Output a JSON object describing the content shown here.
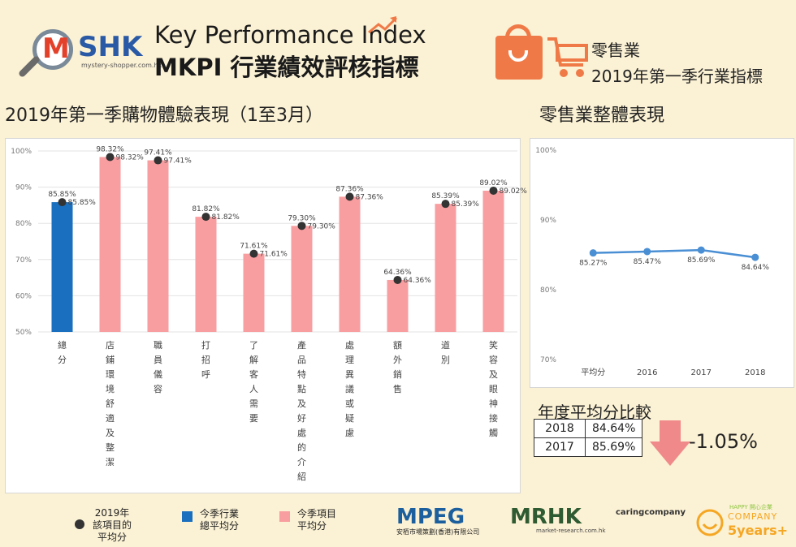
{
  "header": {
    "logo_letter": "M",
    "logo_brand": "SHK",
    "logo_url": "mystery-shopper.com.hk",
    "title_en": "Key Performance Index",
    "title_zh": "MKPI 行業績效評核指標",
    "industry": "零售業",
    "period": "2019年第一季行業指標"
  },
  "sections": {
    "left_title": "2019年第一季購物體驗表現（1至3月）",
    "right_title": "零售業整體表現"
  },
  "colors": {
    "overall": "#1a6fbe",
    "item": "#f99ea0",
    "line": "#4a8fd4",
    "dot": "#333333"
  },
  "chart_data": [
    {
      "type": "bar",
      "categories": [
        "總分",
        "店鋪環境舒適及整潔",
        "職員儀容",
        "打招呼",
        "了解客人需要",
        "產品特點及好處的介紹",
        "處理異議或疑慮",
        "額外銷售",
        "道別",
        "笑容及眼神接觸"
      ],
      "values": [
        85.85,
        98.32,
        97.41,
        81.82,
        71.61,
        79.3,
        87.36,
        64.36,
        85.39,
        89.02
      ],
      "bar_labels": [
        "85.85%",
        "98.32%",
        "97.41%",
        "81.82%",
        "71.61%",
        "79.30%",
        "87.36%",
        "64.36%",
        "85.39%",
        "89.02%"
      ],
      "dot_values": [
        85.85,
        98.32,
        97.41,
        81.82,
        71.61,
        79.3,
        87.36,
        64.36,
        85.39,
        89.02
      ],
      "dot_labels": [
        "85.85%",
        "98.32%",
        "97.41%",
        "81.82%",
        "71.61%",
        "79.30%",
        "87.36%",
        "64.36%",
        "85.39%",
        "89.02%"
      ],
      "yticks": [
        "50%",
        "60%",
        "70%",
        "80%",
        "90%",
        "100%"
      ],
      "ylim": [
        50,
        100
      ],
      "grid": true
    },
    {
      "type": "line",
      "categories": [
        "平均分",
        "2016",
        "2017",
        "2018"
      ],
      "values": [
        85.27,
        85.47,
        85.69,
        84.64
      ],
      "labels": [
        "85.27%",
        "85.47%",
        "85.69%",
        "84.64%"
      ],
      "yticks": [
        "70%",
        "80%",
        "90%",
        "100%"
      ],
      "ylim": [
        70,
        100
      ]
    }
  ],
  "comparison": {
    "title": "年度平均分比較",
    "rows": [
      {
        "year": "2018",
        "value": "84.64%"
      },
      {
        "year": "2017",
        "value": "85.69%"
      }
    ],
    "change": "-1.05%"
  },
  "legend": {
    "dot_label": "2019年\n該項目的\n平均分",
    "overall_label": "今季行業\n總平均分",
    "item_label": "今季項目\n平均分"
  },
  "footer": {
    "mpeg": "MPEG",
    "mpeg_sub": "安栢市場策劃(香港)有限公司",
    "mrhk": "MRHK",
    "mrhk_sub": "market-research.com.hk",
    "caring": "caringcompany",
    "happy_top": "HAPPY 開心企業",
    "happy_company": "COMPANY",
    "happy_years": "5years+"
  }
}
